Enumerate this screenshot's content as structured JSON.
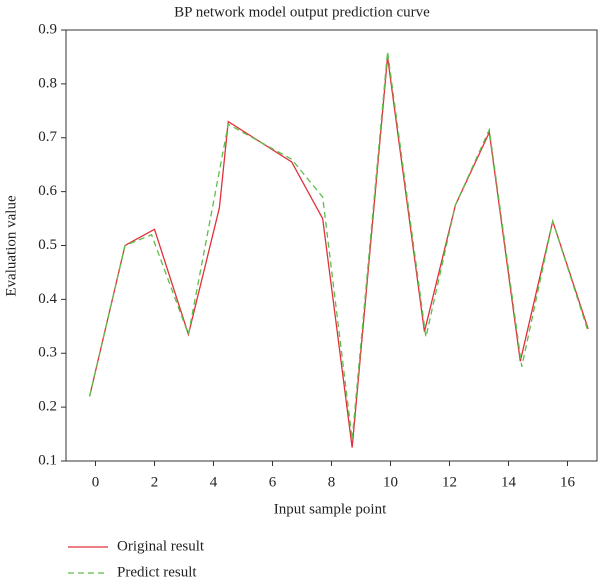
{
  "chart_data": {
    "type": "line",
    "title": "BP network model output prediction curve",
    "x_label": "Input sample point",
    "y_label": "Evaluation value",
    "xlim": [
      -1,
      17
    ],
    "xticks": [
      0,
      2,
      4,
      6,
      8,
      10,
      12,
      14,
      16
    ],
    "ylim": [
      0.1,
      0.9
    ],
    "yticks": [
      0.1,
      0.2,
      0.3,
      0.4,
      0.5,
      0.6,
      0.7,
      0.8,
      0.9
    ],
    "series": [
      {
        "name": "Original result",
        "color": "#e0303a",
        "dash": false,
        "x": [
          -0.2,
          1.0,
          2.0,
          3.15,
          4.2,
          4.5,
          6.65,
          7.7,
          8.7,
          9.9,
          11.15,
          12.2,
          13.35,
          14.4,
          15.5,
          16.7
        ],
        "values": [
          0.22,
          0.5,
          0.53,
          0.335,
          0.57,
          0.73,
          0.655,
          0.55,
          0.125,
          0.85,
          0.34,
          0.575,
          0.71,
          0.285,
          0.545,
          0.345
        ]
      },
      {
        "name": "Predict result",
        "color": "#5cbf4a",
        "dash": true,
        "x": [
          -0.2,
          1.0,
          1.9,
          3.15,
          4.5,
          6.65,
          7.7,
          8.7,
          9.9,
          11.2,
          12.2,
          13.35,
          14.45,
          15.5,
          16.7
        ],
        "values": [
          0.22,
          0.5,
          0.52,
          0.335,
          0.725,
          0.66,
          0.59,
          0.14,
          0.86,
          0.33,
          0.575,
          0.715,
          0.275,
          0.545,
          0.34
        ]
      }
    ]
  }
}
